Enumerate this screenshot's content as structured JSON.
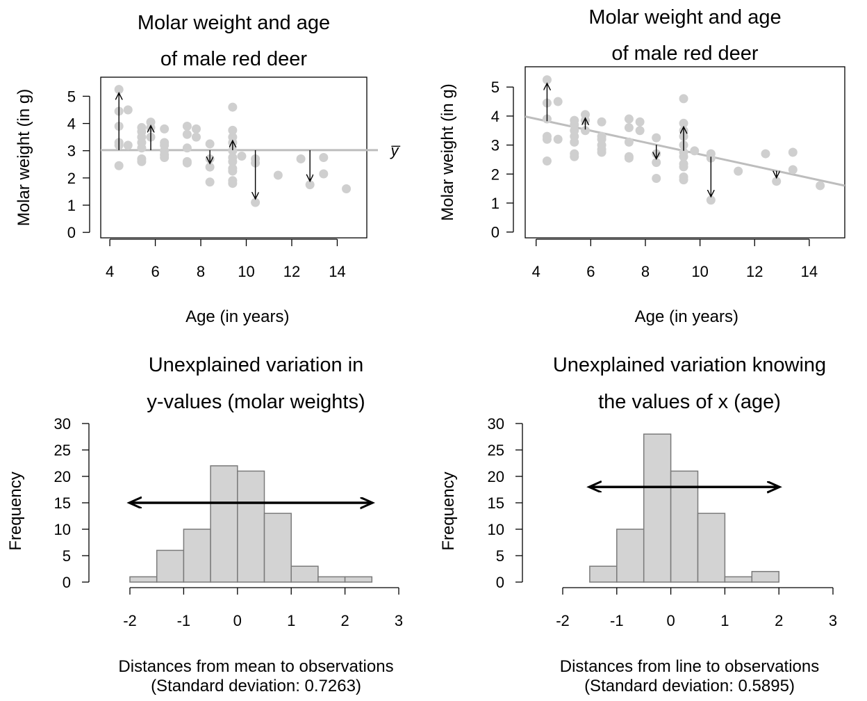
{
  "chart_data": [
    {
      "id": "scatter_mean",
      "type": "scatter",
      "title": [
        "Molar weight and age",
        "of male red deer"
      ],
      "xlabel": "Age (in years)",
      "ylabel": "Molar weight (in g)",
      "xlim": [
        3.6,
        15.3
      ],
      "ylim": [
        -0.2,
        5.7
      ],
      "xticks": [
        4,
        6,
        8,
        10,
        12,
        14
      ],
      "yticks": [
        0,
        1,
        2,
        3,
        4,
        5
      ],
      "reference_line": {
        "kind": "horizontal",
        "y": 3.02,
        "label": "y̅"
      },
      "points": [
        {
          "x": 4.4,
          "y": 5.25
        },
        {
          "x": 4.4,
          "y": 4.45
        },
        {
          "x": 4.4,
          "y": 3.9
        },
        {
          "x": 4.4,
          "y": 3.3
        },
        {
          "x": 4.4,
          "y": 3.2
        },
        {
          "x": 4.4,
          "y": 2.45
        },
        {
          "x": 4.8,
          "y": 4.5
        },
        {
          "x": 4.8,
          "y": 3.2
        },
        {
          "x": 5.4,
          "y": 3.85
        },
        {
          "x": 5.4,
          "y": 3.7
        },
        {
          "x": 5.4,
          "y": 3.5
        },
        {
          "x": 5.4,
          "y": 3.3
        },
        {
          "x": 5.4,
          "y": 3.1
        },
        {
          "x": 5.4,
          "y": 2.7
        },
        {
          "x": 5.4,
          "y": 2.6
        },
        {
          "x": 5.8,
          "y": 4.05
        },
        {
          "x": 5.8,
          "y": 3.85
        },
        {
          "x": 5.8,
          "y": 3.5
        },
        {
          "x": 6.4,
          "y": 3.8
        },
        {
          "x": 6.4,
          "y": 3.3
        },
        {
          "x": 6.4,
          "y": 3.2
        },
        {
          "x": 6.4,
          "y": 3.0
        },
        {
          "x": 6.4,
          "y": 2.85
        },
        {
          "x": 6.4,
          "y": 2.75
        },
        {
          "x": 7.4,
          "y": 3.9
        },
        {
          "x": 7.4,
          "y": 3.6
        },
        {
          "x": 7.4,
          "y": 3.1
        },
        {
          "x": 7.4,
          "y": 2.6
        },
        {
          "x": 7.4,
          "y": 2.55
        },
        {
          "x": 7.8,
          "y": 3.8
        },
        {
          "x": 7.8,
          "y": 3.5
        },
        {
          "x": 8.4,
          "y": 3.25
        },
        {
          "x": 8.4,
          "y": 2.7
        },
        {
          "x": 8.4,
          "y": 2.4
        },
        {
          "x": 8.4,
          "y": 1.85
        },
        {
          "x": 9.4,
          "y": 4.6
        },
        {
          "x": 9.4,
          "y": 3.75
        },
        {
          "x": 9.4,
          "y": 3.5
        },
        {
          "x": 9.4,
          "y": 3.3
        },
        {
          "x": 9.4,
          "y": 3.0
        },
        {
          "x": 9.4,
          "y": 2.75
        },
        {
          "x": 9.4,
          "y": 2.6
        },
        {
          "x": 9.4,
          "y": 2.35
        },
        {
          "x": 9.4,
          "y": 2.25
        },
        {
          "x": 9.4,
          "y": 1.9
        },
        {
          "x": 9.4,
          "y": 1.8
        },
        {
          "x": 9.8,
          "y": 2.8
        },
        {
          "x": 10.4,
          "y": 2.7
        },
        {
          "x": 10.4,
          "y": 2.55
        },
        {
          "x": 10.4,
          "y": 1.1
        },
        {
          "x": 11.4,
          "y": 2.1
        },
        {
          "x": 12.4,
          "y": 2.7
        },
        {
          "x": 12.8,
          "y": 1.75
        },
        {
          "x": 13.4,
          "y": 2.75
        },
        {
          "x": 13.4,
          "y": 2.15
        },
        {
          "x": 14.4,
          "y": 1.6
        }
      ],
      "arrows": [
        {
          "x": 4.4,
          "y": 5.25
        },
        {
          "x": 5.8,
          "y": 4.05
        },
        {
          "x": 8.4,
          "y": 2.4
        },
        {
          "x": 9.4,
          "y": 3.5
        },
        {
          "x": 10.4,
          "y": 1.1
        },
        {
          "x": 12.8,
          "y": 1.75
        }
      ]
    },
    {
      "id": "scatter_line",
      "type": "scatter",
      "title": [
        "Molar weight and age",
        "of male red deer"
      ],
      "xlabel": "Age (in years)",
      "ylabel": "Molar weight (in g)",
      "xlim": [
        3.6,
        15.3
      ],
      "ylim": [
        -0.2,
        5.7
      ],
      "xticks": [
        4,
        6,
        8,
        10,
        12,
        14
      ],
      "yticks": [
        0,
        1,
        2,
        3,
        4,
        5
      ],
      "reference_line": {
        "kind": "regression",
        "intercept": 4.72,
        "slope": -0.204
      },
      "points": [
        {
          "x": 4.4,
          "y": 5.25
        },
        {
          "x": 4.4,
          "y": 4.45
        },
        {
          "x": 4.4,
          "y": 3.9
        },
        {
          "x": 4.4,
          "y": 3.3
        },
        {
          "x": 4.4,
          "y": 3.2
        },
        {
          "x": 4.4,
          "y": 2.45
        },
        {
          "x": 4.8,
          "y": 4.5
        },
        {
          "x": 4.8,
          "y": 3.2
        },
        {
          "x": 5.4,
          "y": 3.85
        },
        {
          "x": 5.4,
          "y": 3.7
        },
        {
          "x": 5.4,
          "y": 3.5
        },
        {
          "x": 5.4,
          "y": 3.3
        },
        {
          "x": 5.4,
          "y": 3.1
        },
        {
          "x": 5.4,
          "y": 2.7
        },
        {
          "x": 5.4,
          "y": 2.6
        },
        {
          "x": 5.8,
          "y": 4.05
        },
        {
          "x": 5.8,
          "y": 3.85
        },
        {
          "x": 5.8,
          "y": 3.5
        },
        {
          "x": 6.4,
          "y": 3.8
        },
        {
          "x": 6.4,
          "y": 3.3
        },
        {
          "x": 6.4,
          "y": 3.2
        },
        {
          "x": 6.4,
          "y": 3.0
        },
        {
          "x": 6.4,
          "y": 2.85
        },
        {
          "x": 6.4,
          "y": 2.75
        },
        {
          "x": 7.4,
          "y": 3.9
        },
        {
          "x": 7.4,
          "y": 3.6
        },
        {
          "x": 7.4,
          "y": 3.1
        },
        {
          "x": 7.4,
          "y": 2.6
        },
        {
          "x": 7.4,
          "y": 2.55
        },
        {
          "x": 7.8,
          "y": 3.8
        },
        {
          "x": 7.8,
          "y": 3.5
        },
        {
          "x": 8.4,
          "y": 3.25
        },
        {
          "x": 8.4,
          "y": 2.7
        },
        {
          "x": 8.4,
          "y": 2.4
        },
        {
          "x": 8.4,
          "y": 1.85
        },
        {
          "x": 9.4,
          "y": 4.6
        },
        {
          "x": 9.4,
          "y": 3.75
        },
        {
          "x": 9.4,
          "y": 3.5
        },
        {
          "x": 9.4,
          "y": 3.3
        },
        {
          "x": 9.4,
          "y": 3.0
        },
        {
          "x": 9.4,
          "y": 2.75
        },
        {
          "x": 9.4,
          "y": 2.6
        },
        {
          "x": 9.4,
          "y": 2.35
        },
        {
          "x": 9.4,
          "y": 2.25
        },
        {
          "x": 9.4,
          "y": 1.9
        },
        {
          "x": 9.4,
          "y": 1.8
        },
        {
          "x": 9.8,
          "y": 2.8
        },
        {
          "x": 10.4,
          "y": 2.7
        },
        {
          "x": 10.4,
          "y": 2.55
        },
        {
          "x": 10.4,
          "y": 1.1
        },
        {
          "x": 11.4,
          "y": 2.1
        },
        {
          "x": 12.4,
          "y": 2.7
        },
        {
          "x": 12.8,
          "y": 1.75
        },
        {
          "x": 13.4,
          "y": 2.75
        },
        {
          "x": 13.4,
          "y": 2.15
        },
        {
          "x": 14.4,
          "y": 1.6
        }
      ],
      "arrows": [
        {
          "x": 4.4,
          "y": 5.25
        },
        {
          "x": 5.8,
          "y": 4.05
        },
        {
          "x": 8.4,
          "y": 2.4
        },
        {
          "x": 9.4,
          "y": 3.75
        },
        {
          "x": 10.4,
          "y": 1.1
        },
        {
          "x": 12.8,
          "y": 1.75
        }
      ]
    },
    {
      "id": "hist_mean",
      "type": "bar",
      "title": [
        "Unexplained variation in",
        "y-values (molar weights)"
      ],
      "title_italic_prefix": "y",
      "xlabel": "Distances from mean to observations",
      "subtitle": "(Standard deviation: 0.7263)",
      "ylabel": "Frequency",
      "xlim": [
        -2,
        3
      ],
      "ylim": [
        0,
        30
      ],
      "xticks": [
        -2,
        -1,
        0,
        1,
        2,
        3
      ],
      "yticks": [
        0,
        5,
        10,
        15,
        20,
        25,
        30
      ],
      "bin_edges": [
        -2.0,
        -1.5,
        -1.0,
        -0.5,
        0.0,
        0.5,
        1.0,
        1.5,
        2.0,
        2.5
      ],
      "counts": [
        1,
        6,
        10,
        22,
        21,
        13,
        3,
        1,
        1
      ],
      "spread_arrow": {
        "from": -2.0,
        "to": 2.5,
        "y": 15
      }
    },
    {
      "id": "hist_line",
      "type": "bar",
      "title": [
        "Unexplained variation knowing",
        "the values of x (age)"
      ],
      "xlabel": "Distances from line to observations",
      "subtitle": "(Standard deviation: 0.5895)",
      "ylabel": "Frequency",
      "xlim": [
        -2,
        3
      ],
      "ylim": [
        0,
        30
      ],
      "xticks": [
        -2,
        -1,
        0,
        1,
        2,
        3
      ],
      "yticks": [
        0,
        5,
        10,
        15,
        20,
        25,
        30
      ],
      "bin_edges": [
        -1.5,
        -1.0,
        -0.5,
        0.0,
        0.5,
        1.0,
        1.5,
        2.0
      ],
      "counts": [
        3,
        10,
        28,
        21,
        13,
        1,
        2
      ],
      "spread_arrow": {
        "from": -1.5,
        "to": 2.0,
        "y": 18
      }
    }
  ]
}
